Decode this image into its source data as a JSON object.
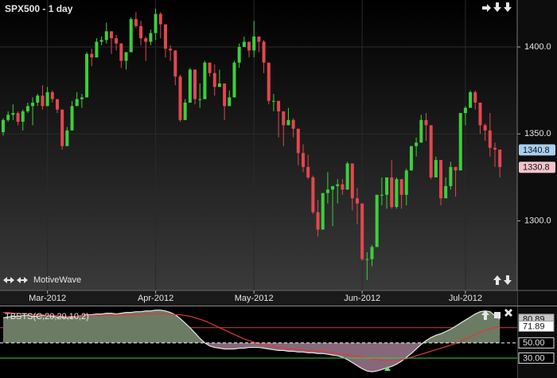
{
  "chart_data": [
    {
      "type": "candlestick",
      "title": "SPX500 - 1 day",
      "footer": "MotiveWave",
      "categories": [
        null,
        null,
        null,
        null,
        null,
        null,
        null,
        null,
        null,
        "Mar-2012",
        null,
        null,
        null,
        null,
        null,
        null,
        null,
        null,
        null,
        null,
        null,
        null,
        null,
        null,
        null,
        null,
        null,
        null,
        null,
        null,
        null,
        "Apr-2012",
        null,
        null,
        null,
        null,
        null,
        null,
        null,
        null,
        null,
        null,
        null,
        null,
        null,
        null,
        null,
        null,
        null,
        null,
        null,
        "May-2012",
        null,
        null,
        null,
        null,
        null,
        null,
        null,
        null,
        null,
        null,
        null,
        null,
        null,
        null,
        null,
        null,
        null,
        null,
        null,
        null,
        null,
        "Jun-2012",
        null,
        null,
        null,
        null,
        null,
        null,
        null,
        null,
        null,
        null,
        null,
        null,
        null,
        null,
        null,
        null,
        null,
        null,
        null,
        null,
        "Jul-2012",
        null,
        null,
        null,
        null,
        null,
        null,
        null
      ],
      "ohlc": [
        [
          1351,
          1359,
          1349,
          1358
        ],
        [
          1358,
          1363,
          1357,
          1361
        ],
        [
          1361,
          1367,
          1358,
          1362
        ],
        [
          1362,
          1363,
          1355,
          1357
        ],
        [
          1357,
          1364,
          1352,
          1363
        ],
        [
          1363,
          1368,
          1362,
          1366
        ],
        [
          1366,
          1371,
          1355,
          1368
        ],
        [
          1368,
          1373,
          1366,
          1372
        ],
        [
          1372,
          1378,
          1364,
          1366
        ],
        [
          1366,
          1377,
          1366,
          1374
        ],
        [
          1374,
          1375,
          1368,
          1370
        ],
        [
          1370,
          1370,
          1362,
          1364
        ],
        [
          1364,
          1364,
          1341,
          1343
        ],
        [
          1343,
          1354,
          1343,
          1352
        ],
        [
          1352,
          1369,
          1352,
          1366
        ],
        [
          1366,
          1374,
          1366,
          1370
        ],
        [
          1370,
          1373,
          1365,
          1371
        ],
        [
          1371,
          1397,
          1371,
          1396
        ],
        [
          1396,
          1399,
          1389,
          1394
        ],
        [
          1394,
          1405,
          1394,
          1403
        ],
        [
          1403,
          1406,
          1401,
          1404
        ],
        [
          1404,
          1414,
          1402,
          1409
        ],
        [
          1409,
          1409,
          1396,
          1405
        ],
        [
          1405,
          1407,
          1398,
          1402
        ],
        [
          1402,
          1402,
          1388,
          1392
        ],
        [
          1392,
          1397,
          1387,
          1397
        ],
        [
          1397,
          1417,
          1397,
          1416
        ],
        [
          1416,
          1420,
          1411,
          1412
        ],
        [
          1412,
          1415,
          1401,
          1405
        ],
        [
          1405,
          1406,
          1392,
          1403
        ],
        [
          1403,
          1410,
          1401,
          1408
        ],
        [
          1408,
          1422,
          1404,
          1419
        ],
        [
          1419,
          1420,
          1405,
          1413
        ],
        [
          1413,
          1413,
          1394,
          1399
        ],
        [
          1399,
          1401,
          1392,
          1398
        ],
        [
          1398,
          1398,
          1378,
          1383
        ],
        [
          1383,
          1384,
          1357,
          1358
        ],
        [
          1358,
          1370,
          1358,
          1368
        ],
        [
          1368,
          1388,
          1368,
          1387
        ],
        [
          1387,
          1387,
          1367,
          1370
        ],
        [
          1370,
          1379,
          1365,
          1370
        ],
        [
          1370,
          1392,
          1370,
          1391
        ],
        [
          1391,
          1391,
          1383,
          1385
        ],
        [
          1385,
          1390,
          1372,
          1377
        ],
        [
          1377,
          1387,
          1377,
          1379
        ],
        [
          1379,
          1379,
          1358,
          1366
        ],
        [
          1366,
          1375,
          1366,
          1371
        ],
        [
          1371,
          1392,
          1371,
          1391
        ],
        [
          1391,
          1402,
          1388,
          1400
        ],
        [
          1400,
          1406,
          1400,
          1403
        ],
        [
          1403,
          1403,
          1394,
          1398
        ],
        [
          1398,
          1415,
          1394,
          1406
        ],
        [
          1406,
          1406,
          1397,
          1403
        ],
        [
          1403,
          1404,
          1385,
          1391
        ],
        [
          1391,
          1391,
          1367,
          1369
        ],
        [
          1369,
          1373,
          1363,
          1369
        ],
        [
          1369,
          1369,
          1348,
          1363
        ],
        [
          1363,
          1363,
          1343,
          1355
        ],
        [
          1355,
          1365,
          1355,
          1358
        ],
        [
          1358,
          1359,
          1348,
          1353
        ],
        [
          1353,
          1353,
          1332,
          1339
        ],
        [
          1339,
          1344,
          1328,
          1331
        ],
        [
          1331,
          1338,
          1324,
          1325
        ],
        [
          1325,
          1326,
          1304,
          1305
        ],
        [
          1305,
          1312,
          1291,
          1295
        ],
        [
          1295,
          1316,
          1295,
          1316
        ],
        [
          1316,
          1328,
          1310,
          1318
        ],
        [
          1318,
          1320,
          1297,
          1320
        ],
        [
          1320,
          1324,
          1310,
          1321
        ],
        [
          1321,
          1324,
          1315,
          1318
        ],
        [
          1318,
          1334,
          1318,
          1333
        ],
        [
          1333,
          1333,
          1306,
          1313
        ],
        [
          1313,
          1319,
          1298,
          1310
        ],
        [
          1310,
          1310,
          1277,
          1278
        ],
        [
          1278,
          1282,
          1266,
          1278
        ],
        [
          1278,
          1286,
          1274,
          1285
        ],
        [
          1285,
          1315,
          1285,
          1315
        ],
        [
          1315,
          1325,
          1309,
          1315
        ],
        [
          1315,
          1325,
          1307,
          1325
        ],
        [
          1325,
          1335,
          1307,
          1308
        ],
        [
          1308,
          1325,
          1307,
          1324
        ],
        [
          1324,
          1324,
          1307,
          1315
        ],
        [
          1315,
          1330,
          1309,
          1329
        ],
        [
          1329,
          1343,
          1329,
          1343
        ],
        [
          1343,
          1348,
          1337,
          1345
        ],
        [
          1345,
          1361,
          1345,
          1358
        ],
        [
          1358,
          1362,
          1346,
          1355
        ],
        [
          1355,
          1355,
          1324,
          1325
        ],
        [
          1325,
          1337,
          1325,
          1335
        ],
        [
          1335,
          1335,
          1309,
          1313
        ],
        [
          1313,
          1325,
          1313,
          1320
        ],
        [
          1320,
          1334,
          1318,
          1331
        ],
        [
          1331,
          1331,
          1314,
          1329
        ],
        [
          1329,
          1362,
          1329,
          1362
        ],
        [
          1362,
          1366,
          1355,
          1365
        ],
        [
          1365,
          1375,
          1365,
          1374
        ],
        [
          1374,
          1375,
          1364,
          1368
        ],
        [
          1368,
          1368,
          1350,
          1355
        ],
        [
          1355,
          1356,
          1346,
          1352
        ],
        [
          1352,
          1362,
          1337,
          1342
        ],
        [
          1342,
          1345,
          1331,
          1341
        ],
        [
          1341,
          1341,
          1325,
          1331
        ]
      ],
      "up_color": "#3ccf3c",
      "down_color": "#e2474f",
      "ylim": [
        1260,
        1427
      ],
      "yticks": [
        {
          "value": 1300,
          "label": "1300.0"
        },
        {
          "value": 1350,
          "label": "1350.0"
        },
        {
          "value": 1400,
          "label": "1400.0"
        }
      ],
      "grid": true,
      "price_markers": [
        1340.8,
        1330.8
      ],
      "price_marker_colors": [
        "#a9cfee",
        "#f3c4cc"
      ]
    },
    {
      "type": "area",
      "title": "TBSTS(C,20,20,10,2)",
      "series": [
        {
          "color": "#e8e8e8",
          "fill_above": "#6c7b64",
          "fill_below": "#86687a",
          "label_fill": "#c8c8c8",
          "values": [
            83,
            84,
            85,
            85,
            86,
            86,
            85,
            85,
            86,
            86,
            85,
            84,
            84,
            83,
            84,
            85,
            86,
            87,
            87,
            88,
            88,
            89,
            89,
            88,
            89,
            90,
            90,
            91,
            91,
            92,
            92,
            93,
            93,
            92,
            90,
            87,
            82,
            76,
            70,
            63,
            56,
            50,
            46,
            44,
            43,
            42,
            42,
            42,
            43,
            43,
            44,
            44,
            44,
            43,
            42,
            41,
            40,
            40,
            39,
            39,
            38,
            38,
            37,
            37,
            36,
            36,
            35,
            34,
            33,
            31,
            28,
            24,
            20,
            16,
            13,
            12,
            13,
            15,
            17,
            19,
            22,
            26,
            31,
            36,
            42,
            48,
            53,
            57,
            60,
            62,
            65,
            68,
            72,
            76,
            80,
            84,
            88,
            91,
            92,
            91,
            86,
            80.89
          ]
        },
        {
          "color": "#e03838",
          "label_fill": "#ffffff",
          "values": [
            90,
            90,
            89,
            89,
            88,
            88,
            87,
            87,
            87,
            86,
            86,
            86,
            85,
            85,
            85,
            85,
            86,
            86,
            86,
            86,
            86,
            86,
            86,
            87,
            87,
            87,
            87,
            87,
            88,
            88,
            88,
            88,
            88,
            88,
            88,
            87,
            87,
            86,
            85,
            83,
            81,
            79,
            76,
            73,
            70,
            67,
            64,
            61,
            58,
            55,
            53,
            51,
            49,
            47,
            46,
            45,
            44,
            43,
            42,
            42,
            41,
            41,
            40,
            40,
            39,
            39,
            38,
            37,
            36,
            35,
            34,
            33,
            32,
            31,
            30,
            29,
            28,
            27,
            27,
            27,
            27,
            28,
            29,
            31,
            33,
            35,
            37,
            39,
            41,
            43,
            45,
            47,
            49,
            52,
            55,
            58,
            61,
            64,
            66,
            68,
            70,
            71.89
          ]
        }
      ],
      "ylim": [
        9,
        98
      ],
      "yticks": [
        {
          "value": 30,
          "label": "30.00"
        },
        {
          "value": 50,
          "label": "50.00"
        }
      ],
      "ytick_colors": [
        "#3ccf3c",
        "#ffffff"
      ],
      "ytick_dashed": [
        false,
        true
      ],
      "levels": [
        70
      ],
      "level_color": "#d23a3a"
    }
  ]
}
